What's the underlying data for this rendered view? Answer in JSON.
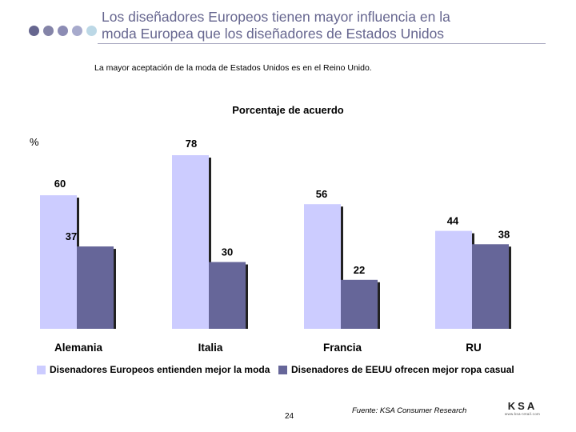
{
  "header": {
    "title_line1": "Los diseñadores Europeos tienen mayor influencia en la",
    "title_line2": "moda Europea que los diseñadores de Estados Unidos",
    "subtitle": "La mayor aceptación de la moda de Estados Unidos es en el Reino Unido.",
    "dot_colors": [
      "#66668f",
      "#8484a8",
      "#8c8cb4",
      "#a7aacc",
      "#bcd8e6"
    ]
  },
  "footer": {
    "page_number": "24",
    "source": "Fuente:  KSA Consumer Research",
    "logo_text": "KSA",
    "logo_subtext": "www.ksa-retail.com"
  },
  "chart_data": {
    "type": "bar",
    "title": "Porcentaje de acuerdo",
    "ylabel": "%",
    "xlabel": "",
    "ylim": [
      0,
      78
    ],
    "grid": false,
    "legend_position": "bottom",
    "categories": [
      "Alemania",
      "Italia",
      "Francia",
      "RU"
    ],
    "series": [
      {
        "name": "Disenadores Europeos entienden mejor la moda",
        "color": "#ccccff",
        "values": [
          60,
          78,
          56,
          44
        ]
      },
      {
        "name": "Disenadores de EEUU ofrecen mejor ropa casual",
        "color": "#666699",
        "values": [
          37,
          30,
          22,
          38
        ]
      }
    ]
  }
}
